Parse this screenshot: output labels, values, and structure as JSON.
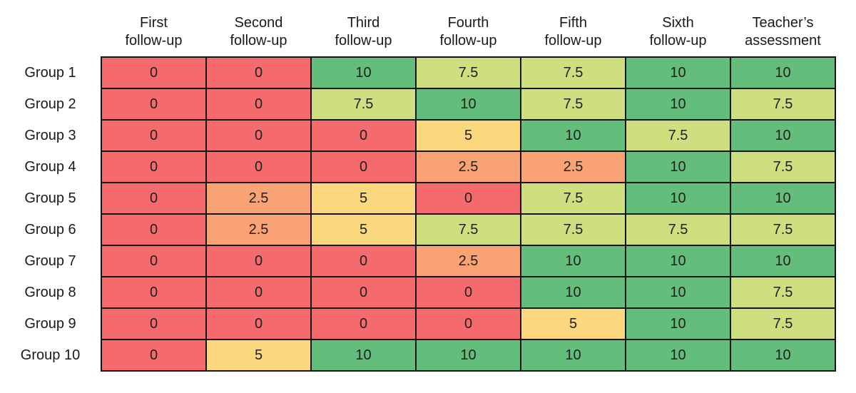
{
  "chart_data": {
    "type": "heatmap",
    "columns": [
      "First follow-up",
      "Second follow-up",
      "Third follow-up",
      "Fourth follow-up",
      "Fifth follow-up",
      "Sixth follow-up",
      "Teacher’s assessment"
    ],
    "rows": [
      "Group 1",
      "Group 2",
      "Group 3",
      "Group 4",
      "Group 5",
      "Group 6",
      "Group 7",
      "Group 8",
      "Group 9",
      "Group 10"
    ],
    "values": [
      [
        0,
        0,
        10,
        7.5,
        7.5,
        10,
        10
      ],
      [
        0,
        0,
        7.5,
        10,
        7.5,
        10,
        7.5
      ],
      [
        0,
        0,
        0,
        5,
        10,
        7.5,
        10
      ],
      [
        0,
        0,
        0,
        2.5,
        2.5,
        10,
        7.5
      ],
      [
        0,
        2.5,
        5,
        0,
        7.5,
        10,
        10
      ],
      [
        0,
        2.5,
        5,
        7.5,
        7.5,
        7.5,
        7.5
      ],
      [
        0,
        0,
        0,
        2.5,
        10,
        10,
        10
      ],
      [
        0,
        0,
        0,
        0,
        10,
        10,
        7.5
      ],
      [
        0,
        0,
        0,
        0,
        5,
        10,
        7.5
      ],
      [
        0,
        5,
        10,
        10,
        10,
        10,
        10
      ]
    ],
    "value_range": [
      0,
      10
    ],
    "color_scale": {
      "0": "#f56b6d",
      "2.5": "#f9a273",
      "5": "#fbd77d",
      "7.5": "#cddf7f",
      "10": "#63be7b"
    },
    "grid": "black cell borders",
    "legend_position": "none"
  }
}
